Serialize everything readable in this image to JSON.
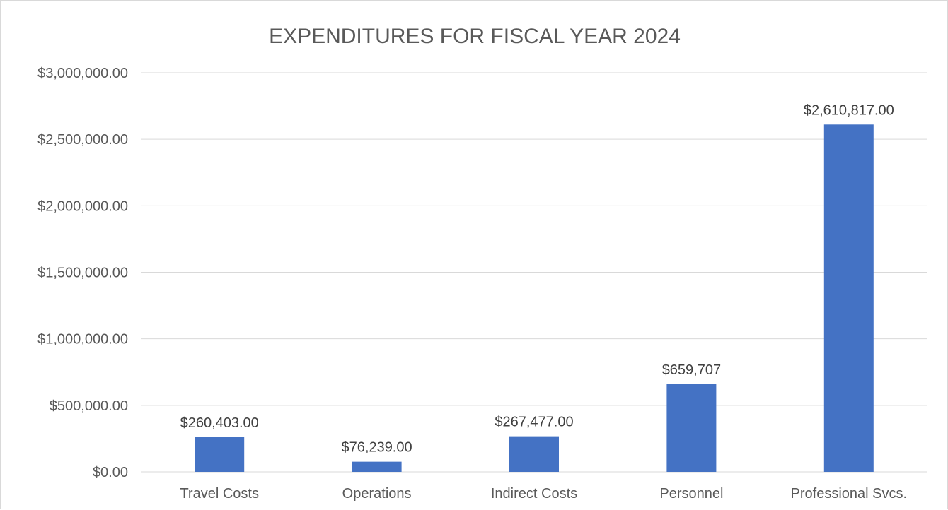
{
  "chart_data": {
    "type": "bar",
    "title": "EXPENDITURES FOR FISCAL YEAR 2024",
    "categories": [
      "Travel Costs",
      "Operations",
      "Indirect Costs",
      "Personnel",
      "Professional Svcs."
    ],
    "values": [
      260403,
      76239,
      267477,
      659707,
      2610817
    ],
    "data_labels": [
      "$260,403.00",
      "$76,239.00",
      "$267,477.00",
      "$659,707",
      "$2,610,817.00"
    ],
    "ylim": [
      0,
      3000000
    ],
    "y_ticks": [
      0,
      500000,
      1000000,
      1500000,
      2000000,
      2500000,
      3000000
    ],
    "y_tick_labels": [
      "$0.00",
      "$500,000.00",
      "$1,000,000.00",
      "$1,500,000.00",
      "$2,000,000.00",
      "$2,500,000.00",
      "$3,000,000.00"
    ],
    "xlabel": "",
    "ylabel": "",
    "grid": true,
    "legend": "none",
    "bar_color": "#4472c4",
    "grid_color": "#d9d9d9"
  }
}
